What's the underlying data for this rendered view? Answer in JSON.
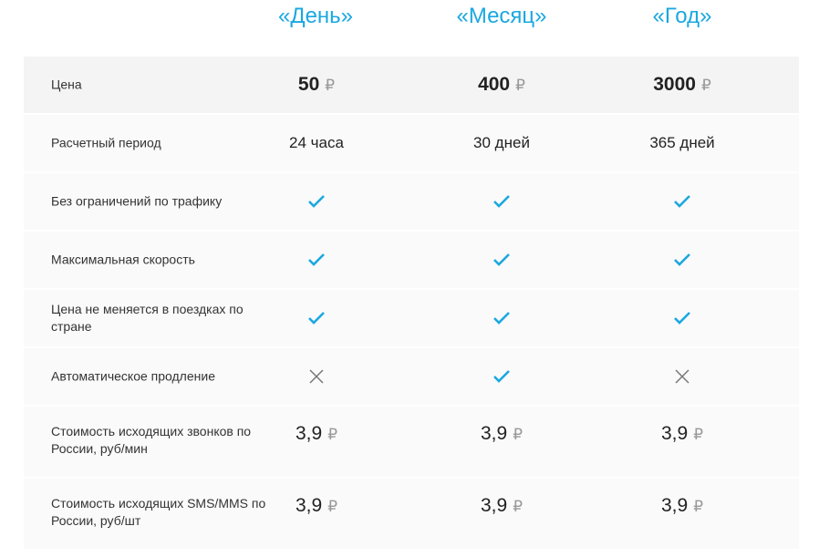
{
  "plans": [
    "«День»",
    "«Месяц»",
    "«Год»"
  ],
  "accent": "#1ba8e0",
  "currency": "₽",
  "rows": [
    {
      "label": "Цена",
      "type": "price",
      "values": [
        "50",
        "400",
        "3000"
      ]
    },
    {
      "label": "Расчетный период",
      "type": "text",
      "values": [
        "24 часа",
        "30 дней",
        "365 дней"
      ]
    },
    {
      "label": "Без ограничений по трафику",
      "type": "bool",
      "values": [
        true,
        true,
        true
      ]
    },
    {
      "label": "Максимальная скорость",
      "type": "bool",
      "values": [
        true,
        true,
        true
      ]
    },
    {
      "label": "Цена не меняется в поездках по стране",
      "type": "bool",
      "values": [
        true,
        true,
        true
      ]
    },
    {
      "label": "Автоматическое продление",
      "type": "bool",
      "values": [
        false,
        true,
        false
      ]
    },
    {
      "label": "Стоимость исходящих звонков по России, руб/мин",
      "type": "money",
      "values": [
        "3,9",
        "3,9",
        "3,9"
      ]
    },
    {
      "label": "Стоимость исходящих SMS/MMS по России, руб/шт",
      "type": "money",
      "values": [
        "3,9",
        "3,9",
        "3,9"
      ]
    }
  ]
}
